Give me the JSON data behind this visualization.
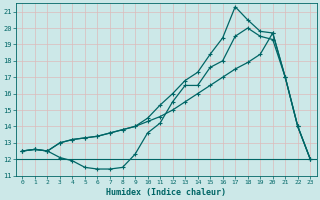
{
  "xlabel": "Humidex (Indice chaleur)",
  "bg_color": "#cce8e8",
  "grid_color": "#aacccc",
  "line_color": "#006666",
  "xlim": [
    -0.5,
    23.5
  ],
  "ylim": [
    11,
    21.5
  ],
  "yticks": [
    11,
    12,
    13,
    14,
    15,
    16,
    17,
    18,
    19,
    20,
    21
  ],
  "xticks": [
    0,
    1,
    2,
    3,
    4,
    5,
    6,
    7,
    8,
    9,
    10,
    11,
    12,
    13,
    14,
    15,
    16,
    17,
    18,
    19,
    20,
    21,
    22,
    23
  ],
  "line1_x": [
    0,
    1,
    2,
    3,
    4,
    5,
    6,
    7,
    8,
    9,
    10,
    11,
    12,
    13,
    14,
    15,
    16,
    17,
    18,
    19,
    20,
    21,
    22,
    23
  ],
  "line1_y": [
    12.5,
    12.6,
    12.5,
    12.1,
    11.9,
    11.5,
    11.4,
    11.4,
    11.5,
    12.3,
    13.6,
    14.2,
    15.5,
    16.5,
    16.5,
    17.6,
    18.0,
    19.5,
    20.0,
    19.5,
    19.3,
    17.0,
    14.0,
    12.0
  ],
  "line2_x": [
    0,
    1,
    2,
    3,
    4,
    5,
    6,
    7,
    8,
    9,
    10,
    11,
    12,
    13,
    14,
    15,
    16,
    17,
    18,
    19,
    20,
    21,
    22,
    23
  ],
  "line2_y": [
    12.5,
    12.6,
    12.5,
    13.0,
    13.2,
    13.3,
    13.4,
    13.6,
    13.8,
    14.0,
    14.3,
    14.6,
    15.0,
    15.5,
    16.0,
    16.5,
    17.0,
    17.5,
    17.9,
    18.4,
    19.7,
    17.0,
    14.0,
    12.0
  ],
  "line3_x": [
    0,
    1,
    2,
    3,
    4,
    5,
    6,
    7,
    8,
    9,
    10,
    11,
    12,
    13,
    14,
    15,
    16,
    17,
    18,
    19,
    20,
    21,
    22,
    23
  ],
  "line3_y": [
    12.5,
    12.6,
    12.5,
    13.0,
    13.2,
    13.3,
    13.4,
    13.6,
    13.8,
    14.0,
    14.5,
    15.3,
    16.0,
    16.8,
    17.3,
    18.4,
    19.4,
    21.3,
    20.5,
    19.8,
    19.7,
    17.0,
    14.0,
    12.0
  ],
  "hline_y": 12.0,
  "marker": "+",
  "markersize": 3.5,
  "linewidth": 0.9
}
